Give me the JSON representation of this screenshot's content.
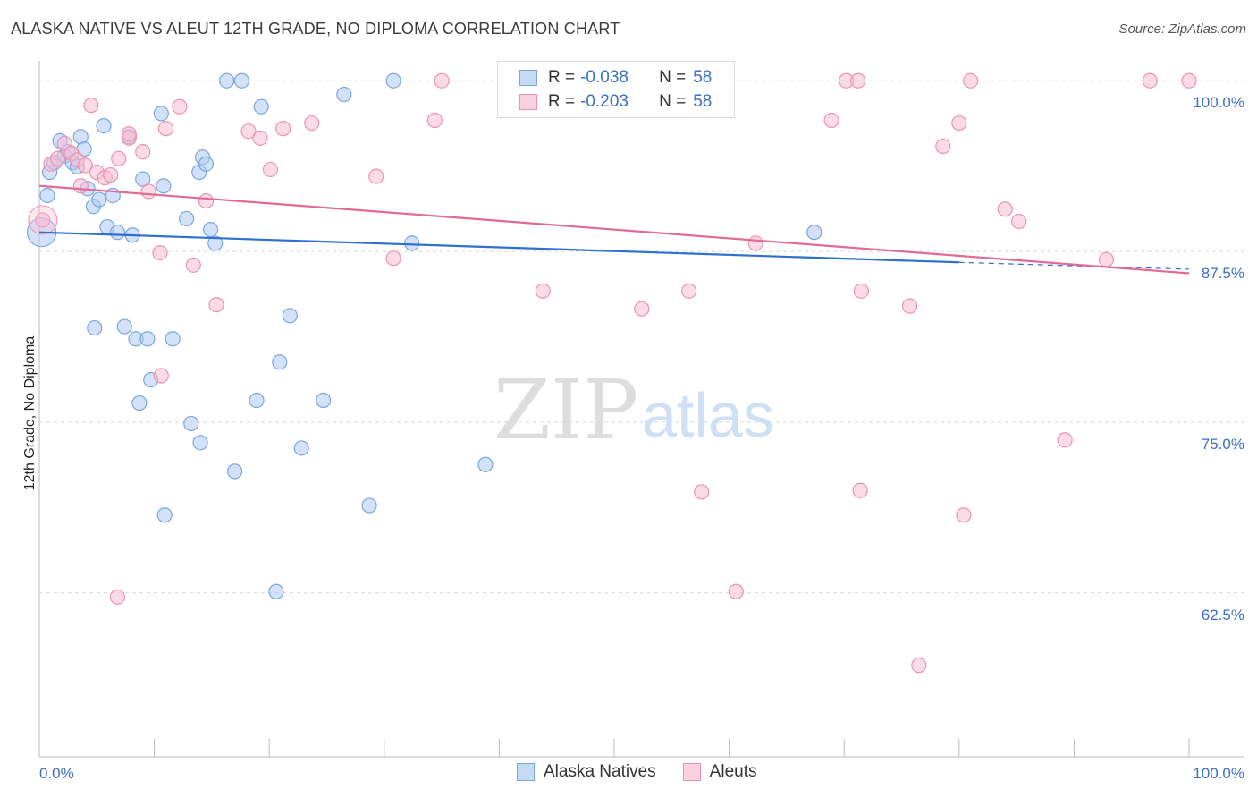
{
  "title": "ALASKA NATIVE VS ALEUT 12TH GRADE, NO DIPLOMA CORRELATION CHART",
  "source": "Source: ZipAtlas.com",
  "watermark": {
    "zip": "ZIP",
    "atlas": "atlas"
  },
  "colors": {
    "blue_fill": "#aecbf2",
    "blue_stroke": "#7aa6e0",
    "blue_line": "#2f6fcf",
    "pink_fill": "#f8bdd0",
    "pink_stroke": "#ec93b0",
    "pink_line": "#e06b98",
    "tick_text": "#3b6fc8",
    "grid": "#d8d8d8"
  },
  "legend": {
    "rows": [
      {
        "r_label": "R =",
        "r_value": "-0.038",
        "n_label": "N =",
        "n_value": "58"
      },
      {
        "r_label": "R =",
        "r_value": "-0.203",
        "n_label": "N =",
        "n_value": "58"
      }
    ],
    "bottom": [
      "Alaska Natives",
      "Aleuts"
    ]
  },
  "chart_data": {
    "type": "scatter",
    "title": "ALASKA NATIVE VS ALEUT 12TH GRADE, NO DIPLOMA CORRELATION CHART",
    "xlabel": "",
    "ylabel": "12th Grade, No Diploma",
    "xlim": [
      0,
      100
    ],
    "ylim": [
      50.5,
      100.8
    ],
    "x_tick_labels": [
      "0.0%",
      "100.0%"
    ],
    "y_ticks": [
      62.5,
      75.0,
      87.5,
      100.0
    ],
    "y_tick_labels": [
      "62.5%",
      "75.0%",
      "87.5%",
      "100.0%"
    ],
    "grid": "horizontal dashed",
    "legend_position": "top-center",
    "series": [
      {
        "name": "Alaska Natives",
        "color": "#aecbf2",
        "trend": {
          "x": [
            0,
            80
          ],
          "y": [
            88.9,
            86.7
          ],
          "extended_to": [
            100,
            86.2
          ]
        },
        "points": [
          [
            0.2,
            88.9
          ],
          [
            0.7,
            91.6
          ],
          [
            0.9,
            93.3
          ],
          [
            1.3,
            94.0
          ],
          [
            1.8,
            95.6
          ],
          [
            2.2,
            94.5
          ],
          [
            2.5,
            94.8
          ],
          [
            2.9,
            94.0
          ],
          [
            3.3,
            93.7
          ],
          [
            3.6,
            95.9
          ],
          [
            3.9,
            95.0
          ],
          [
            4.2,
            92.1
          ],
          [
            4.7,
            90.8
          ],
          [
            5.2,
            91.3
          ],
          [
            5.6,
            96.7
          ],
          [
            5.9,
            89.3
          ],
          [
            6.4,
            91.6
          ],
          [
            6.8,
            88.9
          ],
          [
            7.8,
            95.9
          ],
          [
            8.1,
            88.7
          ],
          [
            9.0,
            92.8
          ],
          [
            10.6,
            97.6
          ],
          [
            10.8,
            92.3
          ],
          [
            12.8,
            89.9
          ],
          [
            13.9,
            93.3
          ],
          [
            14.2,
            94.4
          ],
          [
            14.5,
            93.9
          ],
          [
            14.9,
            89.1
          ],
          [
            15.3,
            88.1
          ],
          [
            16.3,
            100.0
          ],
          [
            17.6,
            100.0
          ],
          [
            19.3,
            98.1
          ],
          [
            4.8,
            81.9
          ],
          [
            7.4,
            82.0
          ],
          [
            8.4,
            81.1
          ],
          [
            9.4,
            81.1
          ],
          [
            9.7,
            78.1
          ],
          [
            8.7,
            76.4
          ],
          [
            11.6,
            81.1
          ],
          [
            13.2,
            74.9
          ],
          [
            14.0,
            73.5
          ],
          [
            17.0,
            71.4
          ],
          [
            18.9,
            76.6
          ],
          [
            20.6,
            62.6
          ],
          [
            20.9,
            79.4
          ],
          [
            21.8,
            82.8
          ],
          [
            22.8,
            73.1
          ],
          [
            24.7,
            76.6
          ],
          [
            28.7,
            68.9
          ],
          [
            30.8,
            100.0
          ],
          [
            32.4,
            88.1
          ],
          [
            38.8,
            71.9
          ],
          [
            41.3,
            100.0
          ],
          [
            44.2,
            100.0
          ],
          [
            10.9,
            68.2
          ],
          [
            67.4,
            88.9
          ],
          [
            45.5,
            100.0
          ],
          [
            26.5,
            99.0
          ]
        ]
      },
      {
        "name": "Aleuts",
        "color": "#f8bdd0",
        "trend": {
          "x": [
            0,
            100
          ],
          "y": [
            92.3,
            85.9
          ]
        },
        "points": [
          [
            0.3,
            89.8
          ],
          [
            1.0,
            93.9
          ],
          [
            1.6,
            94.3
          ],
          [
            2.2,
            95.4
          ],
          [
            2.8,
            94.7
          ],
          [
            3.3,
            94.2
          ],
          [
            3.6,
            92.3
          ],
          [
            4.0,
            93.8
          ],
          [
            4.5,
            98.2
          ],
          [
            5.0,
            93.3
          ],
          [
            5.7,
            92.9
          ],
          [
            6.2,
            93.1
          ],
          [
            6.9,
            94.3
          ],
          [
            7.8,
            95.8
          ],
          [
            9.0,
            94.8
          ],
          [
            9.5,
            91.9
          ],
          [
            10.5,
            87.4
          ],
          [
            11.0,
            96.5
          ],
          [
            12.2,
            98.1
          ],
          [
            13.4,
            86.5
          ],
          [
            14.5,
            91.2
          ],
          [
            15.4,
            83.6
          ],
          [
            18.2,
            96.3
          ],
          [
            19.2,
            95.8
          ],
          [
            20.1,
            93.5
          ],
          [
            21.2,
            96.5
          ],
          [
            23.7,
            96.9
          ],
          [
            29.3,
            93.0
          ],
          [
            30.8,
            87.0
          ],
          [
            34.4,
            97.1
          ],
          [
            35.0,
            100.0
          ],
          [
            43.8,
            84.6
          ],
          [
            52.4,
            83.3
          ],
          [
            56.4,
            100.0
          ],
          [
            56.5,
            84.6
          ],
          [
            57.6,
            69.9
          ],
          [
            60.6,
            62.6
          ],
          [
            62.3,
            88.1
          ],
          [
            68.9,
            97.1
          ],
          [
            70.2,
            100.0
          ],
          [
            71.2,
            100.0
          ],
          [
            71.5,
            84.6
          ],
          [
            71.4,
            70.0
          ],
          [
            75.7,
            83.5
          ],
          [
            76.5,
            57.2
          ],
          [
            78.6,
            95.2
          ],
          [
            80.0,
            96.9
          ],
          [
            80.4,
            68.2
          ],
          [
            81.0,
            100.0
          ],
          [
            84.0,
            90.6
          ],
          [
            85.2,
            89.7
          ],
          [
            89.2,
            73.7
          ],
          [
            92.8,
            86.9
          ],
          [
            96.6,
            100.0
          ],
          [
            100.0,
            100.0
          ],
          [
            6.8,
            62.2
          ],
          [
            10.6,
            78.4
          ],
          [
            7.8,
            96.1
          ]
        ]
      }
    ]
  }
}
